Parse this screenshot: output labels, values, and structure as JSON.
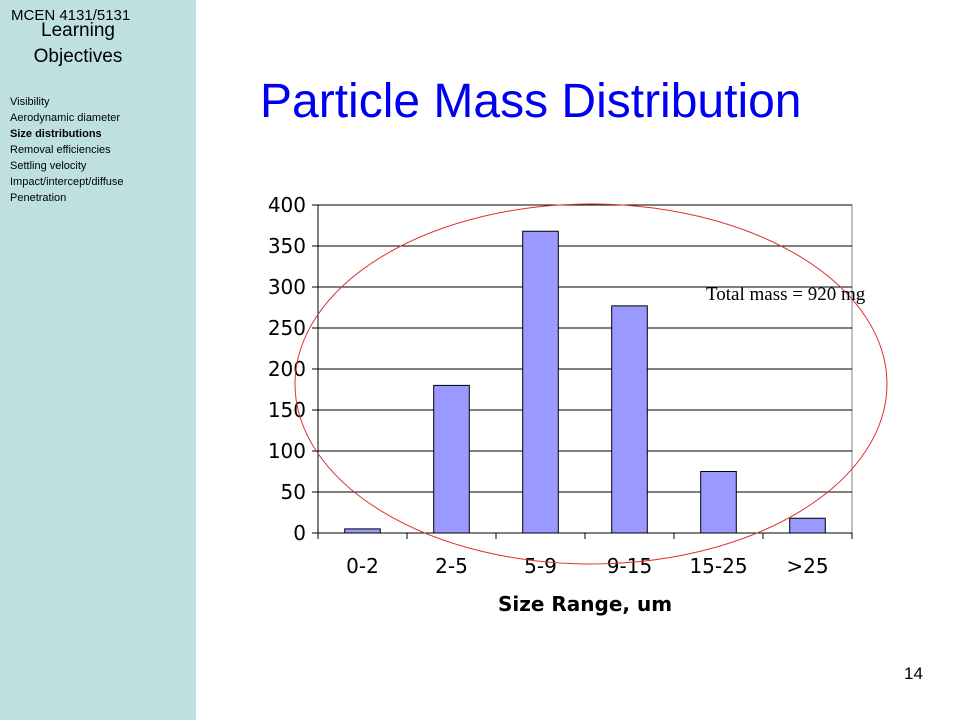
{
  "sidebar": {
    "course_code": "MCEN 4131/5131",
    "heading": "Learning Objectives",
    "items": [
      {
        "label": "Visibility",
        "active": false
      },
      {
        "label": "Aerodynamic diameter",
        "active": false
      },
      {
        "label": "Size distributions",
        "active": true
      },
      {
        "label": "Removal efficiencies",
        "active": false
      },
      {
        "label": "Settling velocity",
        "active": false
      },
      {
        "label": "Impact/intercept/diffuse",
        "active": false
      },
      {
        "label": "Penetration",
        "active": false
      }
    ]
  },
  "slide": {
    "title": "Particle Mass Distribution",
    "number": "14"
  },
  "annotation": {
    "text": "Total mass = 920 mg",
    "highlight_color": "#e03030"
  },
  "chart_data": {
    "type": "bar",
    "categories": [
      "0-2",
      "2-5",
      "5-9",
      "9-15",
      "15-25",
      ">25"
    ],
    "values": [
      5,
      180,
      368,
      277,
      75,
      18
    ],
    "xlabel": "Size Range, um",
    "ylabel": "",
    "ylim": [
      0,
      400
    ],
    "yticks": [
      0,
      50,
      100,
      150,
      200,
      250,
      300,
      350,
      400
    ],
    "grid": true,
    "legend": "none",
    "bar_color": "#9999ff"
  }
}
